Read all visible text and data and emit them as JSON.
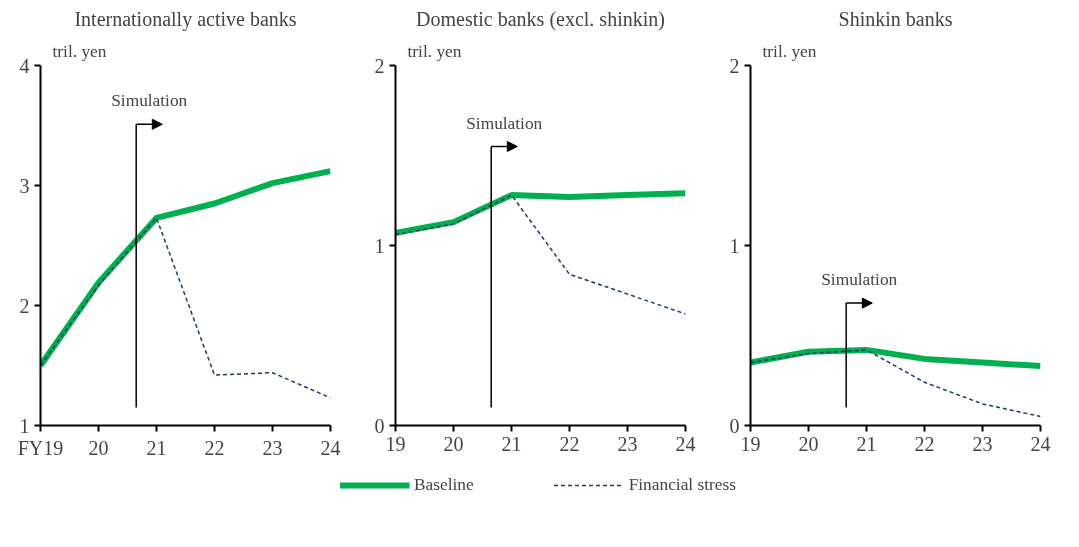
{
  "chart_data": [
    {
      "type": "line",
      "title": "Internationally active banks",
      "ylabel": "tril. yen",
      "x": [
        19,
        20,
        21,
        22,
        23,
        24
      ],
      "xlim": [
        19,
        24
      ],
      "xticks": [
        {
          "value": 19,
          "label": "FY19"
        },
        20,
        21,
        22,
        23,
        24
      ],
      "ylim": [
        1,
        4
      ],
      "yticks": [
        1,
        2,
        3,
        4
      ],
      "grid": false,
      "legend": false,
      "series": [
        {
          "color": "#00b050",
          "line_style": "solid",
          "values": [
            1.5,
            2.19,
            2.73,
            2.85,
            3.02,
            3.12
          ]
        },
        {
          "color": "#1f3864",
          "line_style": "dashed",
          "values": [
            1.5,
            2.17,
            2.73,
            1.42,
            1.44,
            1.23
          ]
        }
      ],
      "ref_lines": [
        {
          "axis": "x",
          "value": 20.65,
          "label": "Simulation"
        }
      ]
    },
    {
      "type": "line",
      "title": "Domestic banks (excl. shinkin)",
      "ylabel": "tril. yen",
      "x": [
        19,
        20,
        21,
        22,
        23,
        24
      ],
      "xlim": [
        19,
        24
      ],
      "xticks": [
        19,
        20,
        21,
        22,
        23,
        24
      ],
      "ylim": [
        0,
        2
      ],
      "yticks": [
        0,
        1,
        2
      ],
      "grid": false,
      "legend": "bottom",
      "series": [
        {
          "name": "Baseline",
          "color": "#00b050",
          "line_style": "solid",
          "values": [
            1.07,
            1.13,
            1.28,
            1.27,
            1.28,
            1.29
          ]
        },
        {
          "name": "Financial stress",
          "color": "#1f3864",
          "line_style": "dashed",
          "values": [
            1.06,
            1.12,
            1.28,
            0.84,
            0.73,
            0.62
          ]
        }
      ],
      "ref_lines": [
        {
          "axis": "x",
          "value": 20.65,
          "label": "Simulation"
        }
      ]
    },
    {
      "type": "line",
      "title": "Shinkin banks",
      "ylabel": "tril. yen",
      "x": [
        19,
        20,
        21,
        22,
        23,
        24
      ],
      "xlim": [
        19,
        24
      ],
      "xticks": [
        19,
        20,
        21,
        22,
        23,
        24
      ],
      "ylim": [
        0,
        2
      ],
      "yticks": [
        0,
        1,
        2
      ],
      "grid": false,
      "legend": false,
      "series": [
        {
          "color": "#00b050",
          "line_style": "solid",
          "values": [
            0.35,
            0.41,
            0.42,
            0.37,
            0.35,
            0.33
          ]
        },
        {
          "color": "#1f3864",
          "line_style": "dashed",
          "values": [
            0.35,
            0.4,
            0.42,
            0.24,
            0.12,
            0.05
          ]
        }
      ],
      "ref_lines": [
        {
          "axis": "x",
          "value": 20.65,
          "label": "Simulation"
        }
      ]
    }
  ]
}
